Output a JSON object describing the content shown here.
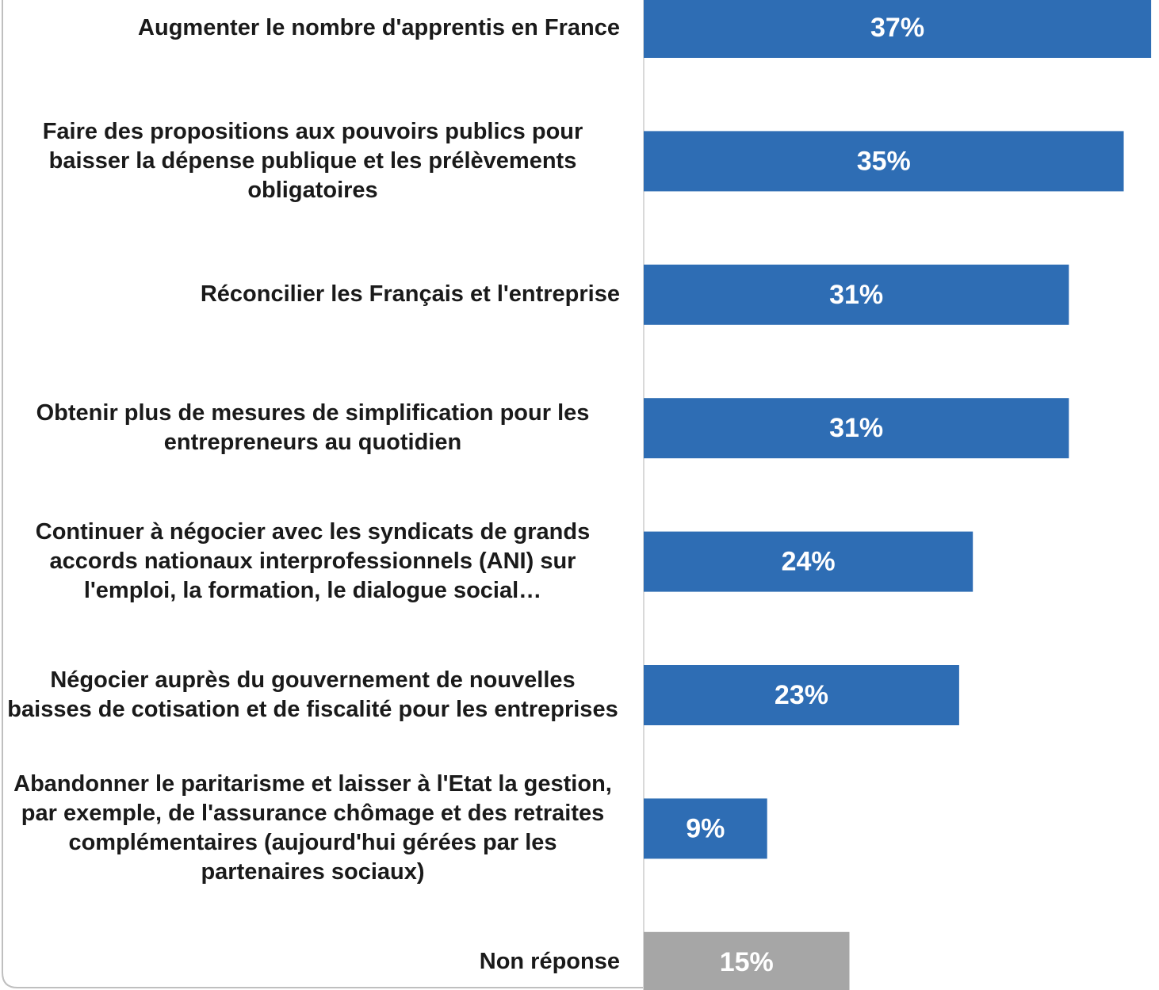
{
  "chart_data": {
    "type": "bar",
    "orientation": "horizontal",
    "categories": [
      "Augmenter le nombre d'apprentis en France",
      "Faire des propositions aux pouvoirs publics pour baisser la dépense publique et les prélèvements obligatoires",
      "Réconcilier les Français et l'entreprise",
      "Obtenir plus de mesures de simplification pour les entrepreneurs au quotidien",
      "Continuer à négocier avec les syndicats de grands accords nationaux interprofessionnels (ANI) sur l'emploi, la formation, le dialogue social…",
      "Négocier auprès du gouvernement de nouvelles baisses de cotisation et de fiscalité pour les entreprises",
      "Abandonner le paritarisme et laisser à l'Etat la gestion, par exemple, de l'assurance chômage et des retraites complémentaires (aujourd'hui gérées par les partenaires sociaux)",
      "Non réponse"
    ],
    "values": [
      37,
      35,
      31,
      31,
      24,
      23,
      9,
      15
    ],
    "value_labels": [
      "37%",
      "35%",
      "31%",
      "31%",
      "24%",
      "23%",
      "9%",
      "15%"
    ],
    "colors": [
      "#2e6db4",
      "#2e6db4",
      "#2e6db4",
      "#2e6db4",
      "#2e6db4",
      "#2e6db4",
      "#2e6db4",
      "#a6a6a6"
    ]
  }
}
